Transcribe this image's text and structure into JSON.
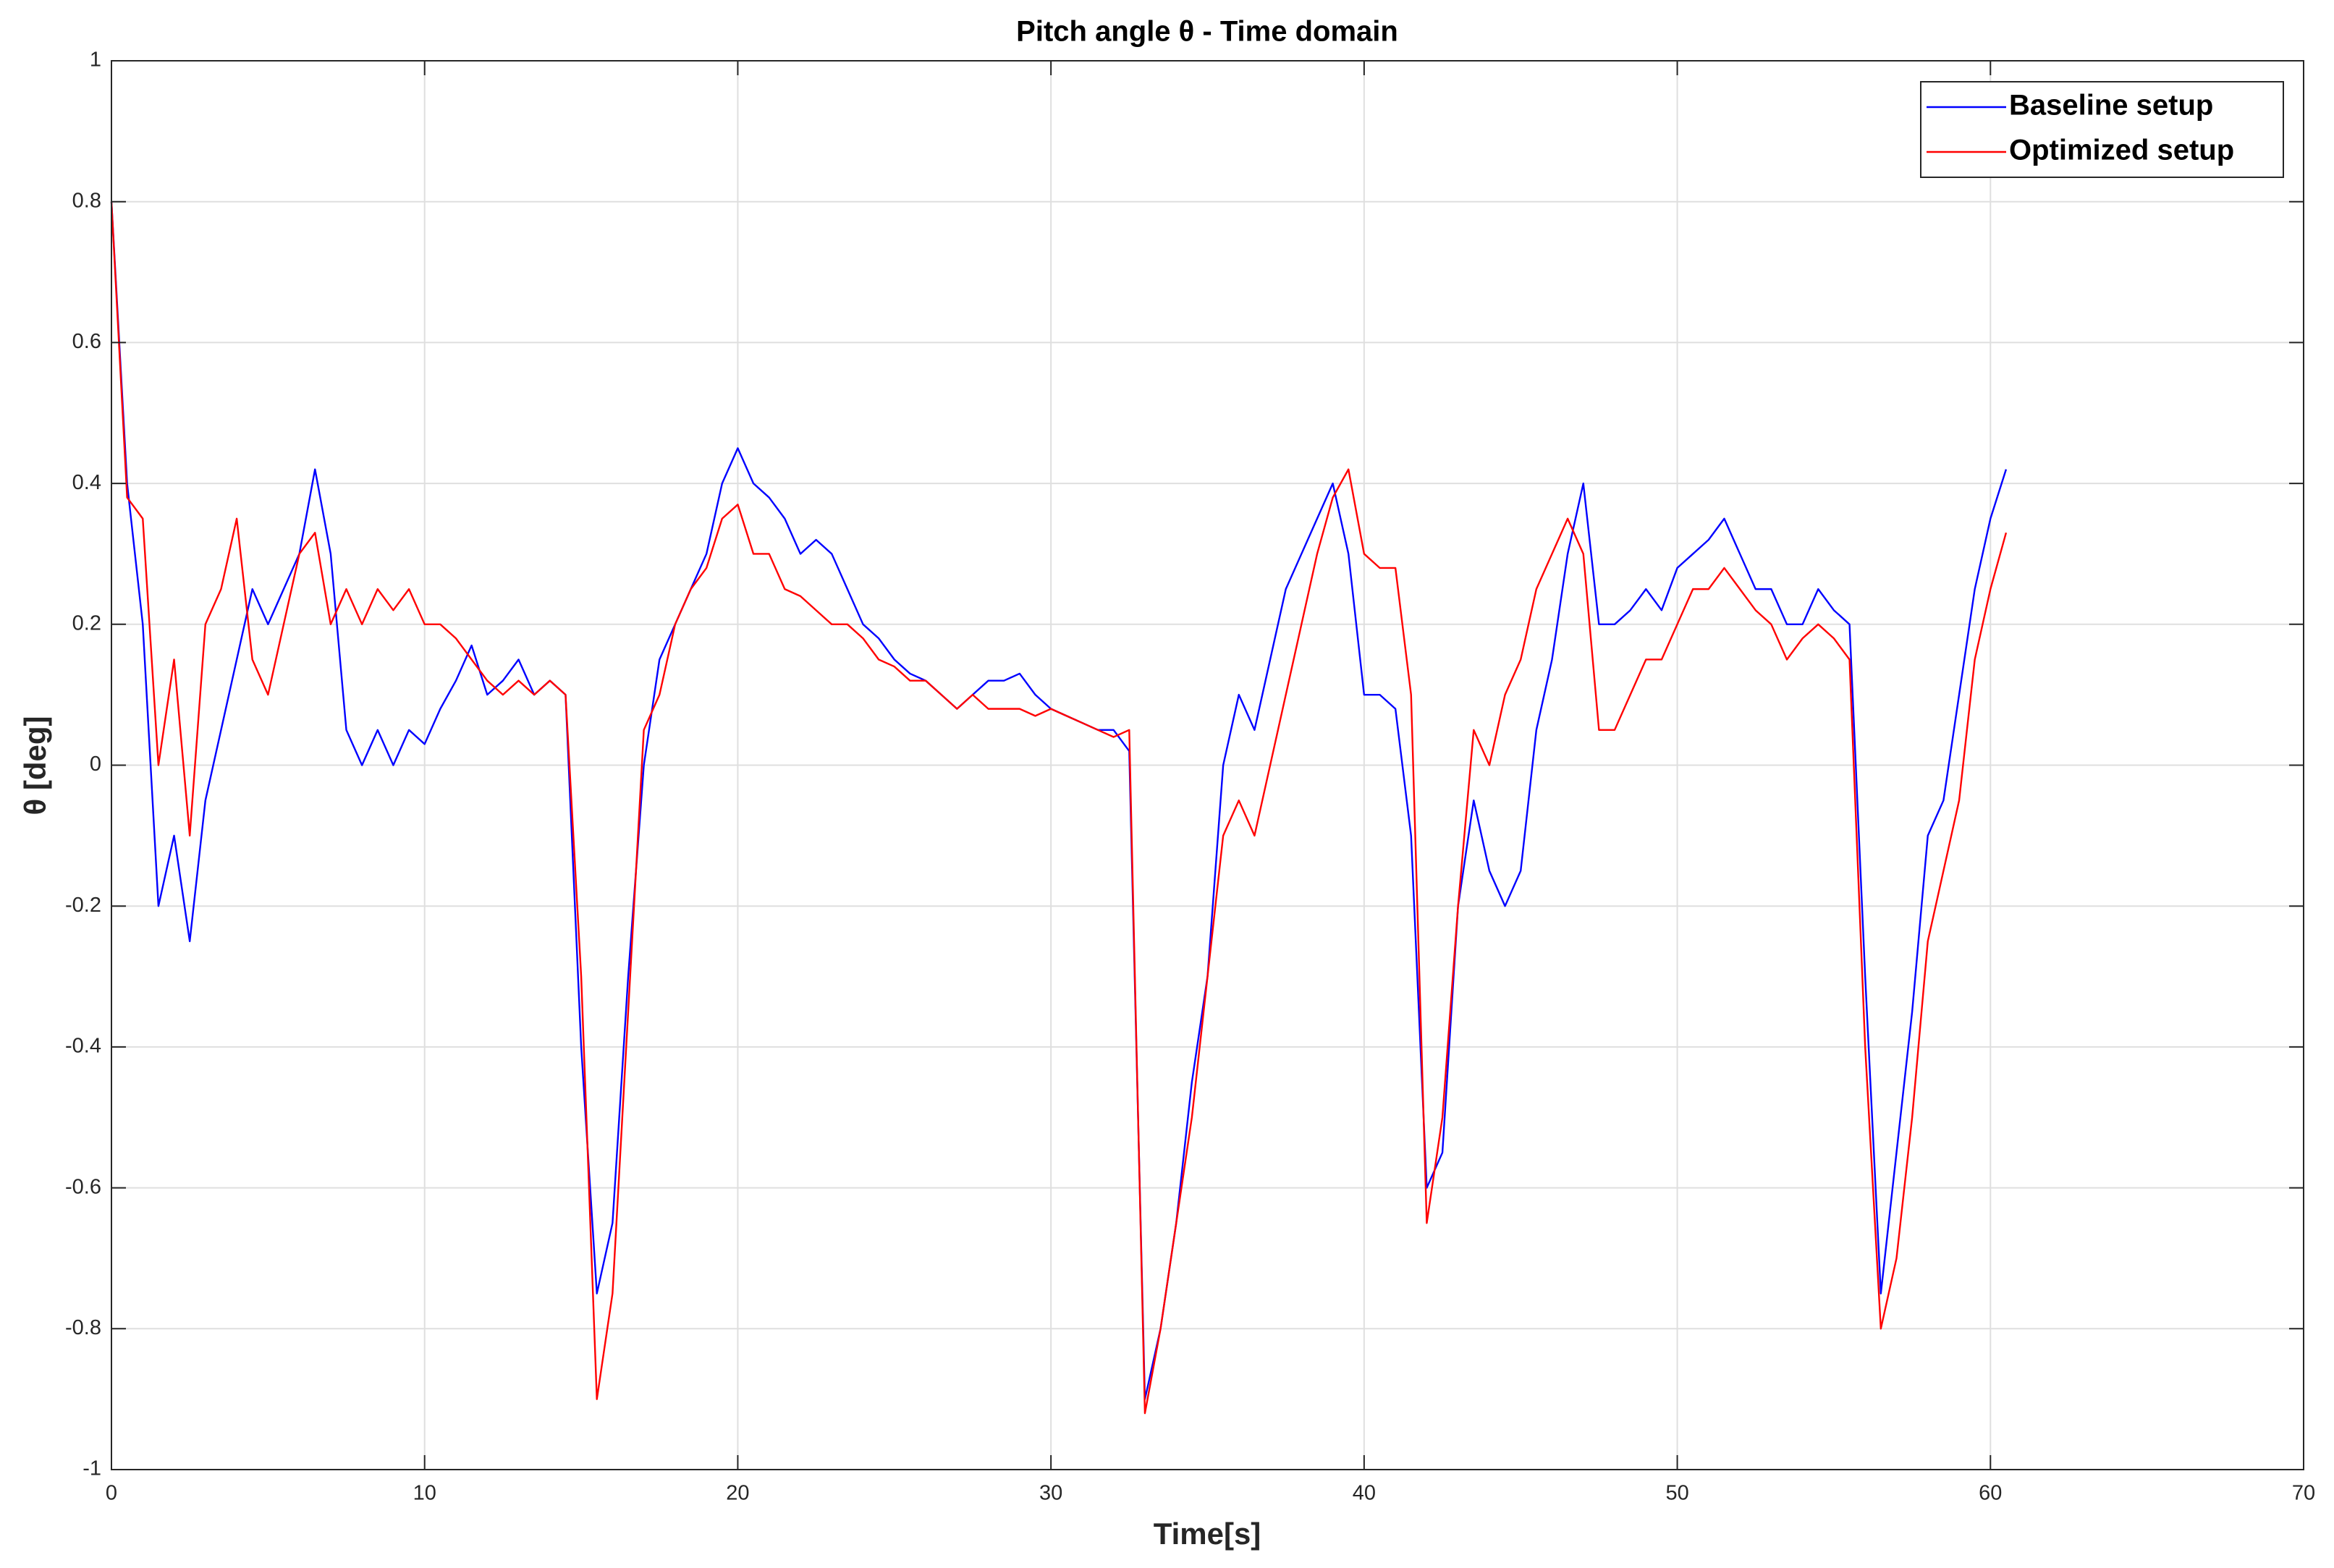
{
  "chart_data": {
    "type": "line",
    "title": "Pitch angle θ - Time domain",
    "xlabel": "Time[s]",
    "ylabel": "θ [deg]",
    "x": [
      0,
      0.5,
      1,
      1.5,
      2,
      2.5,
      3,
      3.5,
      4,
      4.5,
      5,
      5.5,
      6,
      6.5,
      7,
      7.5,
      8,
      8.5,
      9,
      9.5,
      10,
      10.5,
      11,
      11.5,
      12,
      12.5,
      13,
      13.5,
      14,
      14.5,
      15,
      15.5,
      16,
      16.5,
      17,
      17.5,
      18,
      18.5,
      19,
      19.5,
      20,
      20.5,
      21,
      21.5,
      22,
      22.5,
      23,
      23.5,
      24,
      24.5,
      25,
      25.5,
      26,
      26.5,
      27,
      27.5,
      28,
      28.5,
      29,
      29.5,
      30,
      30.5,
      31,
      31.5,
      32,
      32.5,
      33,
      33.5,
      34,
      34.5,
      35,
      35.5,
      36,
      36.5,
      37,
      37.5,
      38,
      38.5,
      39,
      39.5,
      40,
      40.5,
      41,
      41.5,
      42,
      42.5,
      43,
      43.5,
      44,
      44.5,
      45,
      45.5,
      46,
      46.5,
      47,
      47.5,
      48,
      48.5,
      49,
      49.5,
      50,
      50.5,
      51,
      51.5,
      52,
      52.5,
      53,
      53.5,
      54,
      54.5,
      55,
      55.5,
      56,
      56.5,
      57,
      57.5,
      58,
      58.5,
      59,
      59.5,
      60,
      60.5
    ],
    "series": [
      {
        "name": "Baseline setup",
        "color": "#0000ff",
        "values": [
          0.8,
          0.4,
          0.2,
          -0.2,
          -0.1,
          -0.25,
          -0.05,
          0.05,
          0.15,
          0.25,
          0.2,
          0.25,
          0.3,
          0.42,
          0.3,
          0.05,
          0.0,
          0.05,
          0.0,
          0.05,
          0.03,
          0.08,
          0.12,
          0.17,
          0.1,
          0.12,
          0.15,
          0.1,
          0.12,
          0.1,
          -0.4,
          -0.75,
          -0.65,
          -0.3,
          0.0,
          0.15,
          0.2,
          0.25,
          0.3,
          0.4,
          0.45,
          0.4,
          0.38,
          0.35,
          0.3,
          0.32,
          0.3,
          0.25,
          0.2,
          0.18,
          0.15,
          0.13,
          0.12,
          0.1,
          0.08,
          0.1,
          0.12,
          0.12,
          0.13,
          0.1,
          0.08,
          0.07,
          0.06,
          0.05,
          0.05,
          0.02,
          -0.9,
          -0.8,
          -0.65,
          -0.45,
          -0.3,
          0.0,
          0.1,
          0.05,
          0.15,
          0.25,
          0.3,
          0.35,
          0.4,
          0.3,
          0.1,
          0.1,
          0.08,
          -0.1,
          -0.6,
          -0.55,
          -0.2,
          -0.05,
          -0.15,
          -0.2,
          -0.15,
          0.05,
          0.15,
          0.3,
          0.4,
          0.2,
          0.2,
          0.22,
          0.25,
          0.22,
          0.28,
          0.3,
          0.32,
          0.35,
          0.3,
          0.25,
          0.25,
          0.2,
          0.2,
          0.25,
          0.22,
          0.2,
          -0.3,
          -0.75,
          -0.55,
          -0.35,
          -0.1,
          -0.05,
          0.1,
          0.25,
          0.35,
          0.42
        ]
      },
      {
        "name": "Optimized setup",
        "color": "#ff0000",
        "values": [
          0.8,
          0.38,
          0.35,
          0.0,
          0.15,
          -0.1,
          0.2,
          0.25,
          0.35,
          0.15,
          0.1,
          0.2,
          0.3,
          0.33,
          0.2,
          0.25,
          0.2,
          0.25,
          0.22,
          0.25,
          0.2,
          0.2,
          0.18,
          0.15,
          0.12,
          0.1,
          0.12,
          0.1,
          0.12,
          0.1,
          -0.3,
          -0.9,
          -0.75,
          -0.35,
          0.05,
          0.1,
          0.2,
          0.25,
          0.28,
          0.35,
          0.37,
          0.3,
          0.3,
          0.25,
          0.24,
          0.22,
          0.2,
          0.2,
          0.18,
          0.15,
          0.14,
          0.12,
          0.12,
          0.1,
          0.08,
          0.1,
          0.08,
          0.08,
          0.08,
          0.07,
          0.08,
          0.07,
          0.06,
          0.05,
          0.04,
          0.05,
          -0.92,
          -0.8,
          -0.65,
          -0.5,
          -0.3,
          -0.1,
          -0.05,
          -0.1,
          0.0,
          0.1,
          0.2,
          0.3,
          0.38,
          0.42,
          0.3,
          0.28,
          0.28,
          0.1,
          -0.65,
          -0.5,
          -0.2,
          0.05,
          0.0,
          0.1,
          0.15,
          0.25,
          0.3,
          0.35,
          0.3,
          0.05,
          0.05,
          0.1,
          0.15,
          0.15,
          0.2,
          0.25,
          0.25,
          0.28,
          0.25,
          0.22,
          0.2,
          0.15,
          0.18,
          0.2,
          0.18,
          0.15,
          -0.4,
          -0.8,
          -0.7,
          -0.5,
          -0.25,
          -0.15,
          -0.05,
          0.15,
          0.25,
          0.33
        ]
      }
    ],
    "xlim": [
      0,
      70
    ],
    "xticks": [
      0,
      10,
      20,
      30,
      40,
      50,
      60,
      70
    ],
    "ylim": [
      -1,
      1
    ],
    "yticks": [
      -1,
      -0.8,
      -0.6,
      -0.4,
      -0.2,
      0,
      0.2,
      0.4,
      0.6,
      0.8,
      1
    ],
    "grid": true,
    "legend": "northeast"
  }
}
